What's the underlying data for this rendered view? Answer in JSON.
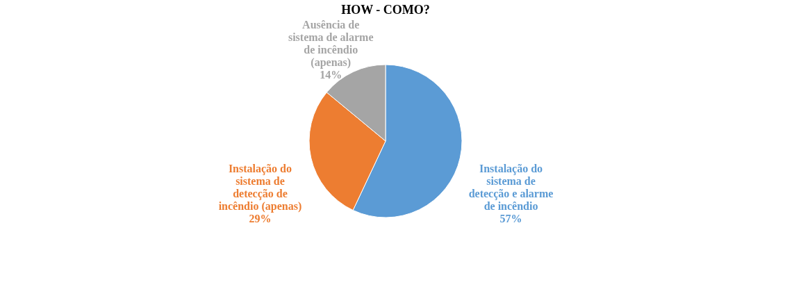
{
  "chart_data": {
    "type": "pie",
    "title": "HOW  - COMO?",
    "categories": [
      "Instalação do sistema de detecção e alarme de incêndio",
      "Instalação do sistema de detecção  de incêndio (apenas)",
      "Ausência de sistema de alarme de incêndio (apenas)"
    ],
    "values": [
      57,
      29,
      14
    ],
    "colors": [
      "#5b9bd5",
      "#ed7d31",
      "#a5a5a5"
    ],
    "value_labels": [
      "57%",
      "29%",
      "14%"
    ],
    "legend": false
  }
}
